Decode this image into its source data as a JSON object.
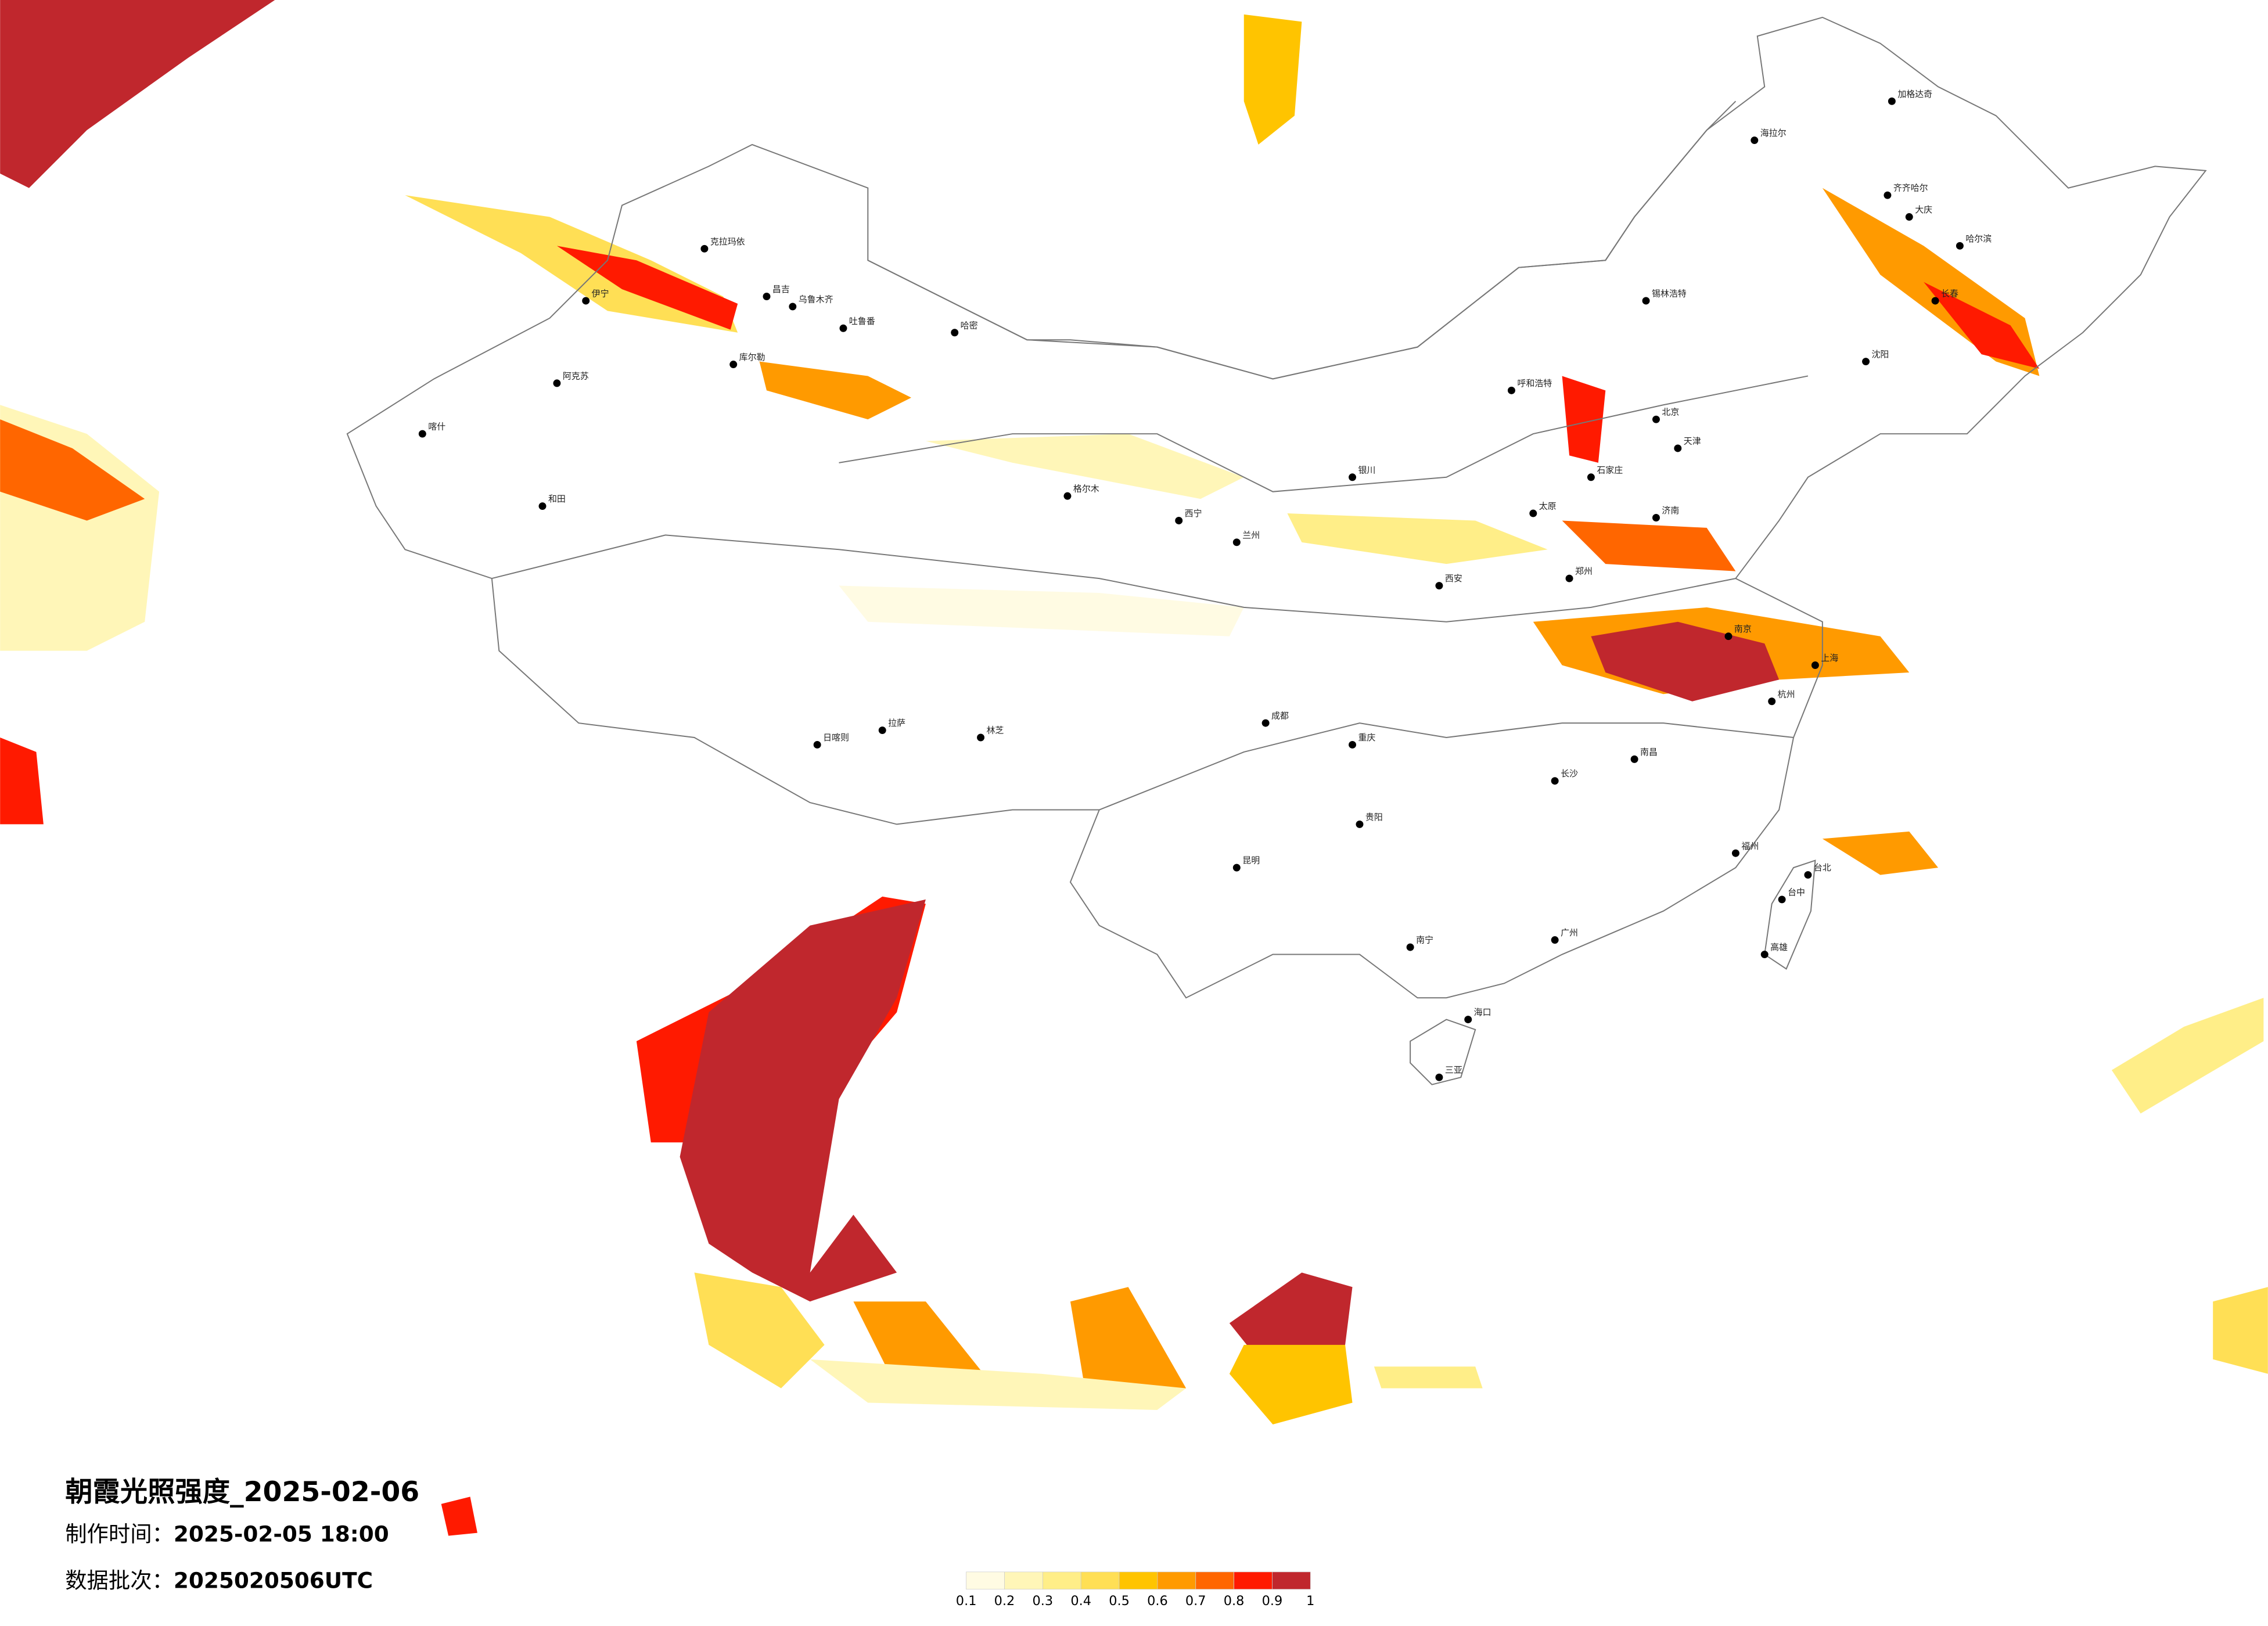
{
  "title": "朝霞光照强度_2025-02-06",
  "made_time": {
    "label": "制作时间：",
    "value": "2025-02-05 18:00"
  },
  "batch": {
    "label": "数据批次：",
    "value": "2025020506UTC"
  },
  "legend": {
    "ticks": [
      0.1,
      0.2,
      0.3,
      0.4,
      0.5,
      0.6,
      0.7,
      0.8,
      0.9,
      1
    ],
    "colors": [
      "#fffbe3",
      "#fff6b8",
      "#ffee88",
      "#ffdf55",
      "#ffc400",
      "#ff9a00",
      "#ff6600",
      "#ff1a00",
      "#c0272d"
    ]
  },
  "cities": [
    "克拉玛依",
    "伊宁",
    "昌吉",
    "乌鲁木齐",
    "吐鲁番",
    "哈密",
    "库尔勒",
    "阿克苏",
    "喀什",
    "和田",
    "格尔木",
    "拉萨",
    "日喀则",
    "林芝",
    "呼和浩特",
    "锡林浩特",
    "海拉尔",
    "加格达奇",
    "齐齐哈尔",
    "大庆",
    "哈尔滨",
    "长春",
    "沈阳",
    "北京",
    "天津",
    "石家庄",
    "太原",
    "济南",
    "郑州",
    "西安",
    "兰州",
    "西宁",
    "银川",
    "成都",
    "重庆",
    "南京",
    "上海",
    "杭州",
    "长沙",
    "南昌",
    "福州",
    "贵阳",
    "昆明",
    "南宁",
    "广州",
    "海口",
    "台北",
    "台中",
    "高雄",
    "三亚"
  ]
}
